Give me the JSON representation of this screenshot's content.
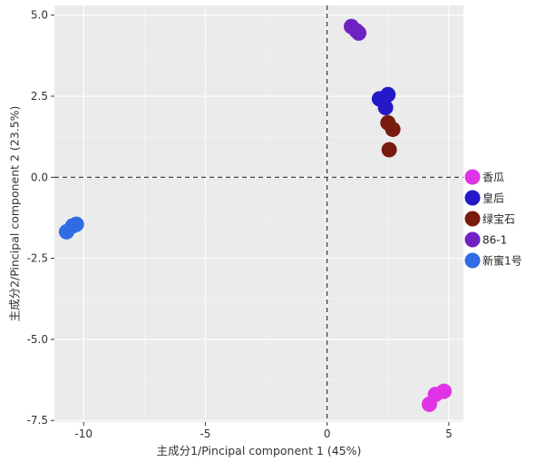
{
  "chart_data": {
    "type": "scatter",
    "title": "",
    "xlabel": "主成分1/Pincipal component 1 (45%)",
    "ylabel": "主成分2/Pincipal component 2 (23.5%)",
    "xlim": [
      -11.2,
      5.6
    ],
    "ylim": [
      -7.55,
      5.3
    ],
    "x_ticks": [
      -10,
      -5,
      0,
      5
    ],
    "y_ticks": [
      5.0,
      2.5,
      0.0,
      -2.5,
      -5.0,
      -7.5
    ],
    "x_tick_labels": [
      "-10",
      "-5",
      "0",
      "5"
    ],
    "y_tick_labels": [
      "5.0",
      "2.5",
      "0.0",
      "-2.5",
      "-5.0",
      "-7.5"
    ],
    "reference_lines": {
      "x": 0,
      "y": 0,
      "style": "dashed"
    },
    "grid": true,
    "legend_position": "right",
    "series": [
      {
        "name": "香瓜",
        "color": "#e033e6",
        "points": [
          {
            "x": 4.2,
            "y": -7.0
          },
          {
            "x": 4.45,
            "y": -6.7
          },
          {
            "x": 4.8,
            "y": -6.6
          }
        ]
      },
      {
        "name": "皇后",
        "color": "#2319c9",
        "points": [
          {
            "x": 2.15,
            "y": 2.42
          },
          {
            "x": 2.5,
            "y": 2.55
          },
          {
            "x": 2.4,
            "y": 2.15
          }
        ]
      },
      {
        "name": "绿宝石",
        "color": "#7a1b10",
        "points": [
          {
            "x": 2.5,
            "y": 1.68
          },
          {
            "x": 2.7,
            "y": 1.48
          },
          {
            "x": 2.55,
            "y": 0.85
          }
        ]
      },
      {
        "name": "86-1",
        "color": "#6f22c4",
        "points": [
          {
            "x": 1.0,
            "y": 4.65
          },
          {
            "x": 1.2,
            "y": 4.52
          },
          {
            "x": 1.3,
            "y": 4.45
          }
        ]
      },
      {
        "name": "新蜜1号",
        "color": "#2f6be3",
        "points": [
          {
            "x": -10.3,
            "y": -1.45
          },
          {
            "x": -10.45,
            "y": -1.5
          },
          {
            "x": -10.7,
            "y": -1.68
          }
        ]
      }
    ]
  }
}
